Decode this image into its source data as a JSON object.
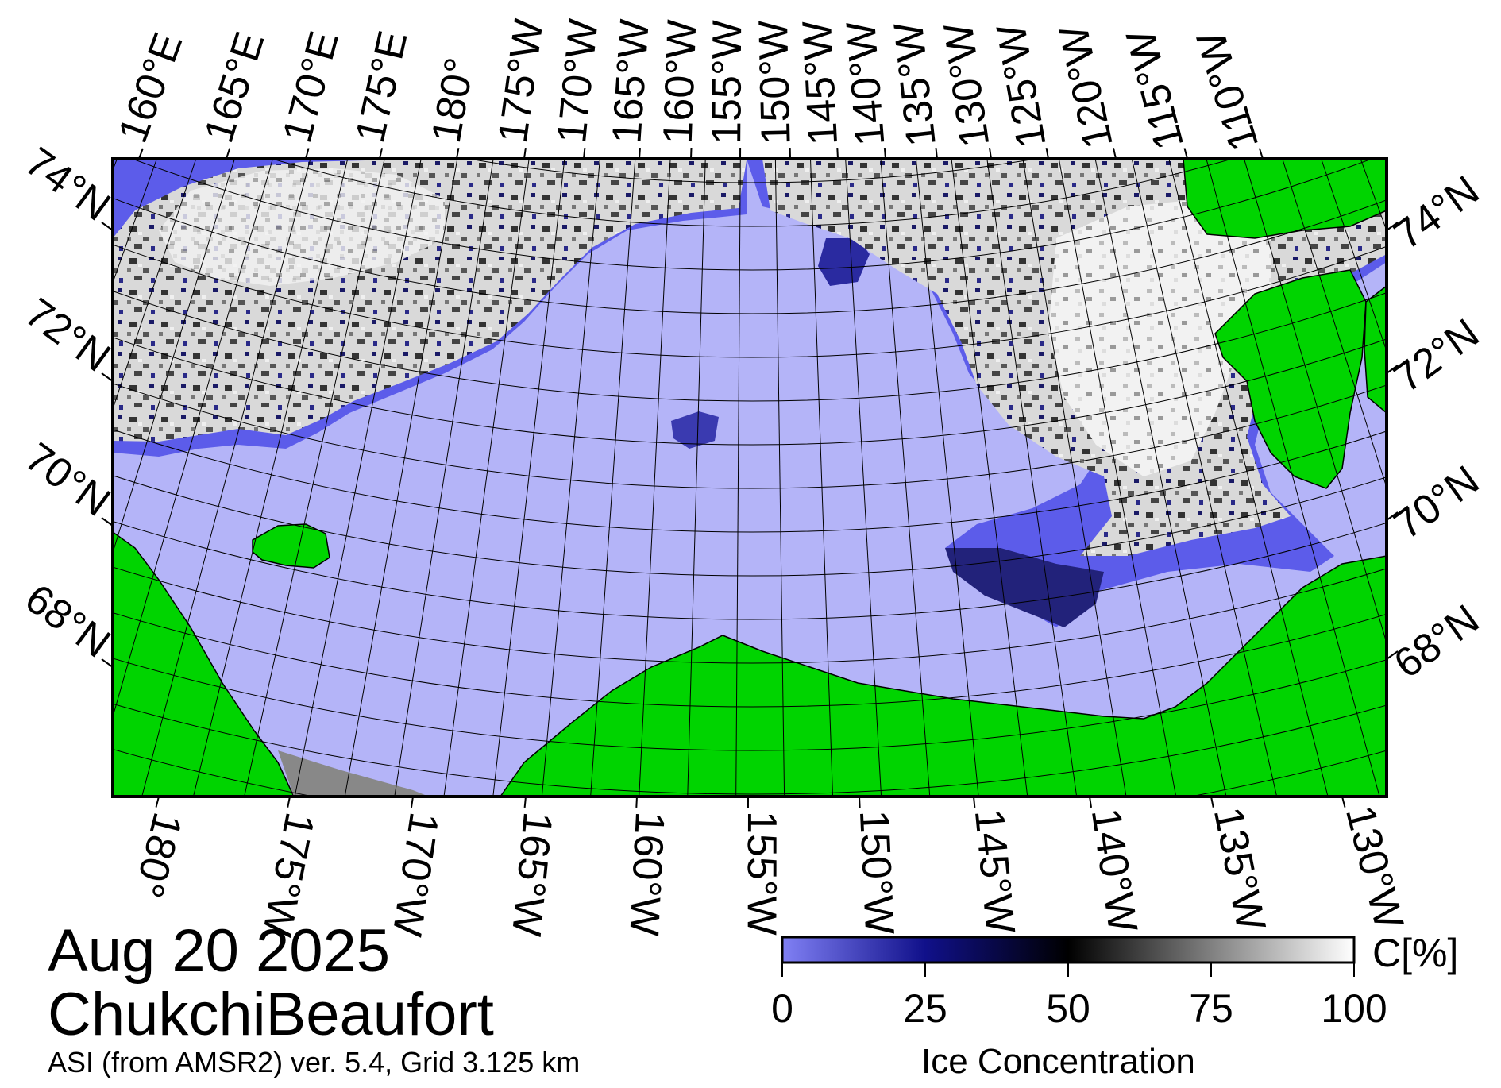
{
  "title": {
    "date": "Aug 20 2025",
    "region": "ChukchiBeaufort",
    "caption": "ASI (from AMSR2) ver. 5.4,  Grid 3.125 km"
  },
  "top_lon_labels": [
    "160°E",
    "165°E",
    "170°E",
    "175°E",
    "180°",
    "175°W",
    "170°W",
    "165°W",
    "160°W",
    "155°W",
    "150°W",
    "145°W",
    "140°W",
    "135°W",
    "130°W",
    "125°W",
    "120°W",
    "115°W",
    "110°W"
  ],
  "bottom_lon_labels": [
    "180°",
    "175°W",
    "170°W",
    "165°W",
    "160°W",
    "155°W",
    "150°W",
    "145°W",
    "140°W",
    "135°W",
    "130°W"
  ],
  "left_lat_labels": [
    "74°N",
    "72°N",
    "70°N",
    "68°N"
  ],
  "right_lat_labels": [
    "74°N",
    "72°N",
    "70°N",
    "68°N"
  ],
  "colorbar": {
    "label": "Ice Concentration",
    "unit": "C[%]",
    "ticks": [
      "0",
      "25",
      "50",
      "75",
      "100"
    ],
    "min": 0,
    "max": 100
  },
  "colors": {
    "open_water": "#b4b4f8",
    "land": "#00d400",
    "no_data": "#888888",
    "ice_low": "#7a7af0",
    "ice_mid": "#00004a",
    "ice_high": "#ffffff"
  }
}
